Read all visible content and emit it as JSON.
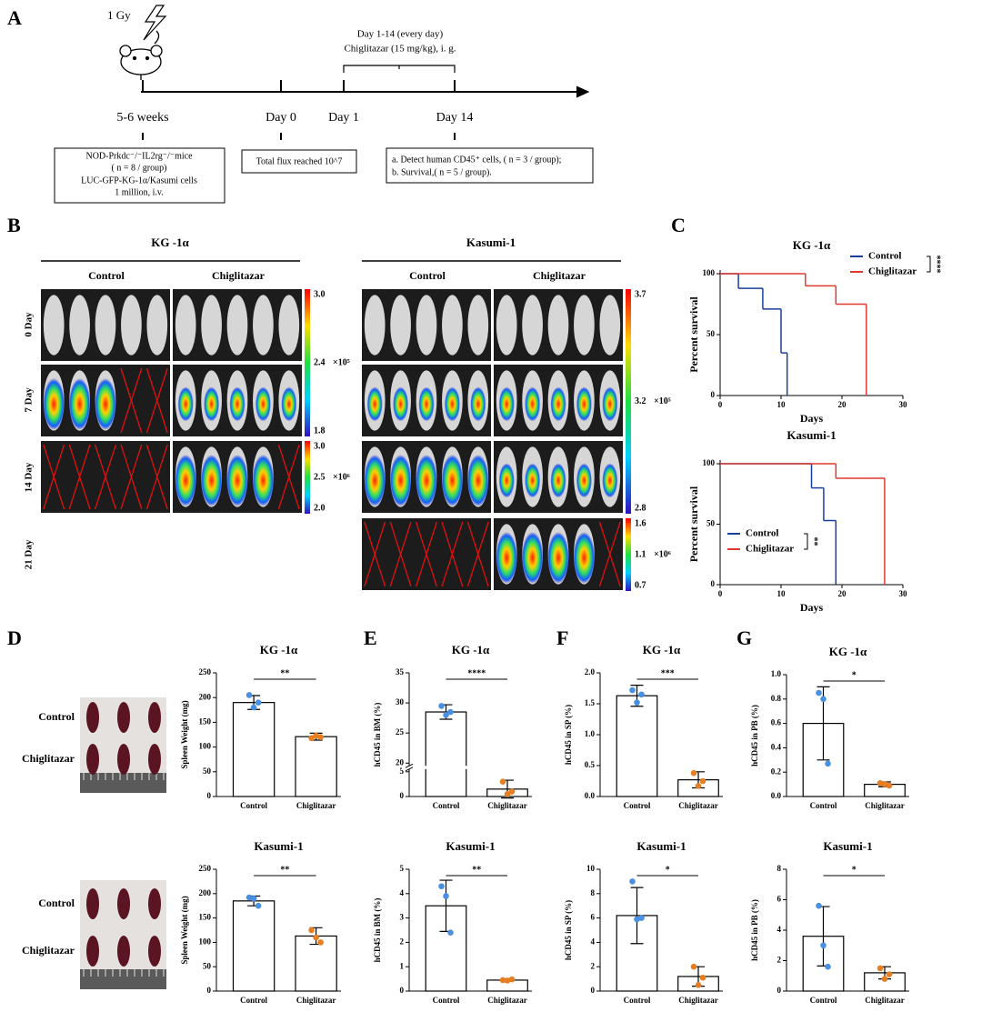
{
  "panel_a": {
    "label": "A",
    "dose": "1 Gy",
    "treatment": [
      "Day 1-14 (every day)",
      "Chiglitazar (15 mg/kg), i. g."
    ],
    "timeline": [
      "5-6 weeks",
      "Day 0",
      "Day 1",
      "Day 14"
    ],
    "boxes": [
      [
        "NOD-Prkdc⁻/⁻IL2rg⁻/⁻mice",
        "( n = 8 / group)",
        "LUC-GFP-KG-1α/Kasumi cells",
        "1 million, i.v."
      ],
      [
        "Total flux reached 10^7"
      ],
      [
        "a. Detect human CD45⁺ cells, ( n = 3 / group);",
        "b. Survival,( n = 5 / group)."
      ]
    ]
  },
  "panel_b": {
    "label": "B",
    "days": [
      "0 Day",
      "7 Day",
      "14 Day",
      "21 Day"
    ],
    "groups": [
      {
        "name": "KG -1α",
        "conditions": [
          "Control",
          "Chiglitazar"
        ],
        "scales": [
          [
            "3.0",
            "2.4",
            "×10⁵",
            "1.8"
          ],
          [
            "3.0",
            "2.5",
            "×10⁶",
            "2.0"
          ]
        ]
      },
      {
        "name": "Kasumi-1",
        "conditions": [
          "Control",
          "Chiglitazar"
        ],
        "scales": [
          [
            "3.7",
            "3.2",
            "×10⁵",
            "2.8"
          ],
          [
            "1.6",
            "1.1",
            "×10⁶",
            "0.7"
          ]
        ]
      }
    ]
  },
  "panel_letters": [
    "C",
    "D",
    "E",
    "F",
    "G"
  ],
  "spleen_photos": [
    [
      "Control",
      "Chiglitazar"
    ],
    [
      "Control",
      "Chiglitazar"
    ]
  ],
  "chart_data": [
    {
      "type": "line",
      "step": "post",
      "title": "KG -1α",
      "xlabel": "Days",
      "ylabel": "Percent survival",
      "xlim": [
        0,
        30
      ],
      "xticks": [
        0,
        10,
        20,
        30
      ],
      "ylim": [
        0,
        100
      ],
      "yticks": [
        0,
        50,
        100
      ],
      "legend": "upper right",
      "significance": "****",
      "series": [
        {
          "name": "Control",
          "color": "#1a3f9e",
          "x": [
            0,
            3,
            7,
            10,
            11
          ],
          "values": [
            100,
            88,
            71,
            35,
            0
          ]
        },
        {
          "name": "Chiglitazar",
          "color": "#e03a2f",
          "x": [
            0,
            14,
            19,
            24
          ],
          "values": [
            100,
            90,
            75,
            0
          ]
        }
      ]
    },
    {
      "type": "line",
      "step": "post",
      "title": "Kasumi-1",
      "xlabel": "Days",
      "ylabel": "Percent survival",
      "xlim": [
        0,
        30
      ],
      "xticks": [
        0,
        10,
        20,
        30
      ],
      "ylim": [
        0,
        100
      ],
      "yticks": [
        0,
        50,
        100
      ],
      "legend": "lower left",
      "significance": "**",
      "series": [
        {
          "name": "Control",
          "color": "#1a3f9e",
          "x": [
            0,
            15,
            17,
            19
          ],
          "values": [
            100,
            80,
            53,
            0
          ]
        },
        {
          "name": "Chiglitazar",
          "color": "#e03a2f",
          "x": [
            0,
            19,
            27
          ],
          "values": [
            100,
            88,
            0
          ]
        }
      ]
    },
    {
      "type": "bar",
      "title": "KG -1α",
      "ylabel": "Spleen Weight (mg)",
      "categories": [
        "Control",
        "Chiglitazar"
      ],
      "values": [
        190,
        121
      ],
      "errors": [
        14,
        7
      ],
      "points": [
        [
          205,
          180,
          190
        ],
        [
          118,
          123,
          120
        ]
      ],
      "colors": [
        "#4a90e2",
        "#e67e22"
      ],
      "ylim": [
        0,
        250
      ],
      "yticks": [
        0,
        50,
        100,
        150,
        200,
        250
      ],
      "significance": "**"
    },
    {
      "type": "bar",
      "title": "Kasumi-1",
      "ylabel": "Spleen Weight (mg)",
      "categories": [
        "Control",
        "Chiglitazar"
      ],
      "values": [
        185,
        113
      ],
      "errors": [
        10,
        17
      ],
      "points": [
        [
          192,
          190,
          175
        ],
        [
          125,
          110,
          100
        ]
      ],
      "colors": [
        "#4a90e2",
        "#e67e22"
      ],
      "ylim": [
        0,
        250
      ],
      "yticks": [
        0,
        50,
        100,
        150,
        200,
        250
      ],
      "significance": "**"
    },
    {
      "type": "bar",
      "title": "KG -1α",
      "ylabel": "hCD45 in BM (%)",
      "categories": [
        "Control",
        "Chiglitazar"
      ],
      "values": [
        28.5,
        1.5
      ],
      "errors": [
        1.2,
        1.8
      ],
      "points": [
        [
          29.5,
          28,
          28.5
        ],
        [
          3,
          0.5,
          1
        ]
      ],
      "colors": [
        "#4a90e2",
        "#e67e22"
      ],
      "ylim": [
        0,
        35
      ],
      "ybreak": [
        5,
        20
      ],
      "yticks": [
        0,
        5,
        20,
        25,
        30,
        35
      ],
      "significance": "****"
    },
    {
      "type": "bar",
      "title": "Kasumi-1",
      "ylabel": "hCD45 in BM (%)",
      "categories": [
        "Control",
        "Chiglitazar"
      ],
      "values": [
        3.5,
        0.45
      ],
      "errors": [
        1.05,
        0.05
      ],
      "points": [
        [
          4.3,
          3.9,
          2.4
        ],
        [
          0.45,
          0.43,
          0.48
        ]
      ],
      "colors": [
        "#4a90e2",
        "#e67e22"
      ],
      "ylim": [
        0,
        5
      ],
      "yticks": [
        0,
        1,
        2,
        3,
        4,
        5
      ],
      "significance": "**"
    },
    {
      "type": "bar",
      "title": "KG -1α",
      "ylabel": "hCD45 in SP (%)",
      "categories": [
        "Control",
        "Chiglitazar"
      ],
      "values": [
        1.63,
        0.27
      ],
      "errors": [
        0.17,
        0.13
      ],
      "points": [
        [
          1.72,
          1.52,
          1.65
        ],
        [
          0.38,
          0.17,
          0.25
        ]
      ],
      "colors": [
        "#4a90e2",
        "#e67e22"
      ],
      "ylim": [
        0,
        2
      ],
      "yticks": [
        {
          "value": 0,
          "label": "0.0"
        },
        0.5,
        {
          "value": 1,
          "label": "1.0"
        },
        1.5,
        {
          "value": 2,
          "label": "2.0"
        }
      ],
      "significance": "***"
    },
    {
      "type": "bar",
      "title": "Kasumi-1",
      "ylabel": "hCD45 in SP (%)",
      "categories": [
        "Control",
        "Chiglitazar"
      ],
      "values": [
        6.2,
        1.2
      ],
      "errors": [
        2.3,
        0.8
      ],
      "points": [
        [
          9,
          5.9,
          6
        ],
        [
          2,
          0.5,
          1.1
        ]
      ],
      "colors": [
        "#4a90e2",
        "#e67e22"
      ],
      "ylim": [
        0,
        10
      ],
      "yticks": [
        0,
        2,
        4,
        6,
        8,
        10
      ],
      "significance": "*"
    },
    {
      "type": "bar",
      "title": "KG -1α",
      "ylabel": "hCD45 in PB (%)",
      "categories": [
        "Control",
        "Chiglitazar"
      ],
      "values": [
        0.6,
        0.1
      ],
      "errors": [
        0.3,
        0.02
      ],
      "points": [
        [
          0.85,
          0.8,
          0.27
        ],
        [
          0.11,
          0.1,
          0.09
        ]
      ],
      "colors": [
        "#4a90e2",
        "#e67e22"
      ],
      "ylim": [
        0,
        1
      ],
      "yticks": [
        {
          "value": 0,
          "label": "0.0"
        },
        0.2,
        0.4,
        0.6,
        0.8,
        {
          "value": 1,
          "label": "1.0"
        }
      ],
      "significance": "*"
    },
    {
      "type": "bar",
      "title": "Kasumi-1",
      "ylabel": "hCD45 in PB (%)",
      "categories": [
        "Control",
        "Chiglitazar"
      ],
      "values": [
        3.6,
        1.2
      ],
      "errors": [
        1.95,
        0.4
      ],
      "points": [
        [
          5.6,
          3,
          1.6
        ],
        [
          1.5,
          0.8,
          1.1
        ]
      ],
      "colors": [
        "#4a90e2",
        "#e67e22"
      ],
      "ylim": [
        0,
        8
      ],
      "yticks": [
        0,
        2,
        4,
        6,
        8
      ],
      "significance": "*"
    }
  ]
}
